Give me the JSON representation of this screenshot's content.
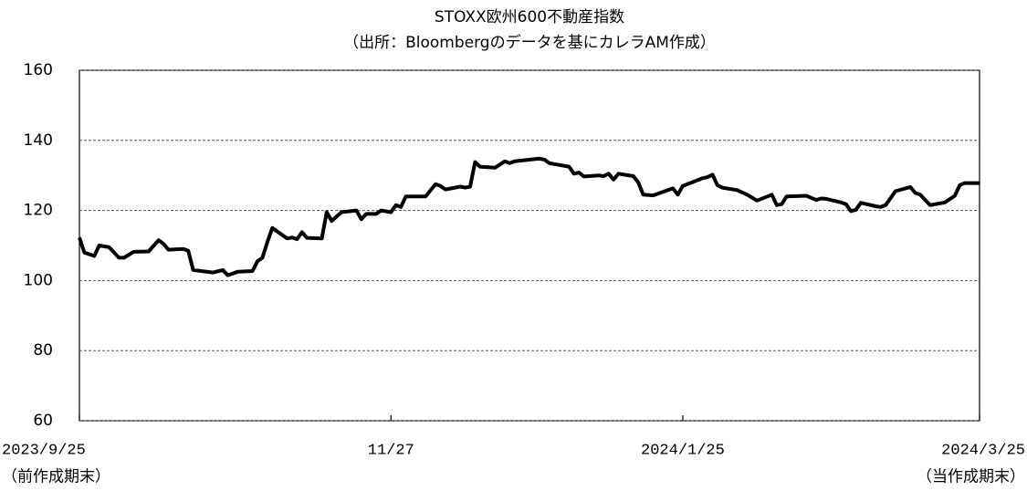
{
  "chart_data": {
    "type": "line",
    "title": "STOXX欧州600不動産指数",
    "subtitle": "（出所：Bloombergのデータを基にカレラAM作成）",
    "annotations": [
      "（前作成期末）",
      "（当作成期末）"
    ],
    "x": [
      "2023-09-25",
      "2023-09-26",
      "2023-09-28",
      "2023-09-29",
      "2023-10-01",
      "2023-10-03",
      "2023-10-04",
      "2023-10-06",
      "2023-10-09",
      "2023-10-11",
      "2023-10-12",
      "2023-10-13",
      "2023-10-16",
      "2023-10-17",
      "2023-10-18",
      "2023-10-22",
      "2023-10-24",
      "2023-10-25",
      "2023-10-27",
      "2023-10-30",
      "2023-10-31",
      "2023-11-01",
      "2023-11-02",
      "2023-11-03",
      "2023-11-06",
      "2023-11-07",
      "2023-11-08",
      "2023-11-09",
      "2023-11-10",
      "2023-11-13",
      "2023-11-14",
      "2023-11-15",
      "2023-11-17",
      "2023-11-20",
      "2023-11-21",
      "2023-11-22",
      "2023-11-24",
      "2023-11-25",
      "2023-11-27",
      "2023-11-28",
      "2023-11-29",
      "2023-11-30",
      "2023-12-04",
      "2023-12-06",
      "2023-12-07",
      "2023-12-08",
      "2023-12-11",
      "2023-12-12",
      "2023-12-13",
      "2023-12-14",
      "2023-12-15",
      "2023-12-18",
      "2023-12-20",
      "2023-12-21",
      "2023-12-22",
      "2023-12-27",
      "2023-12-28",
      "2023-12-29",
      "2024-01-02",
      "2024-01-03",
      "2024-01-04",
      "2024-01-05",
      "2024-01-08",
      "2024-01-09",
      "2024-01-10",
      "2024-01-11",
      "2024-01-12",
      "2024-01-15",
      "2024-01-16",
      "2024-01-17",
      "2024-01-19",
      "2024-01-23",
      "2024-01-24",
      "2024-01-25",
      "2024-01-29",
      "2024-01-30",
      "2024-01-31",
      "2024-02-01",
      "2024-02-02",
      "2024-02-05",
      "2024-02-07",
      "2024-02-09",
      "2024-02-12",
      "2024-02-13",
      "2024-02-14",
      "2024-02-15",
      "2024-02-19",
      "2024-02-21",
      "2024-02-22",
      "2024-02-23",
      "2024-02-26",
      "2024-02-27",
      "2024-02-28",
      "2024-02-29",
      "2024-03-01",
      "2024-03-04",
      "2024-03-05",
      "2024-03-06",
      "2024-03-08",
      "2024-03-11",
      "2024-03-12",
      "2024-03-13",
      "2024-03-15",
      "2024-03-18",
      "2024-03-20",
      "2024-03-21",
      "2024-03-22",
      "2024-03-25"
    ],
    "series": [
      {
        "name": "STOXX欧州600不動産指数",
        "color": "#000000",
        "values": [
          112.3,
          108,
          107,
          110,
          109.5,
          106.5,
          106.5,
          108.2,
          108.3,
          111.5,
          110.5,
          108.8,
          109,
          108.5,
          103,
          102.3,
          103,
          101.5,
          102.5,
          102.7,
          105.5,
          106.5,
          111,
          115,
          112,
          112.3,
          111.8,
          113.8,
          112.2,
          112,
          119.5,
          117,
          119.5,
          120,
          117.5,
          119,
          119,
          120,
          119.5,
          121.5,
          121,
          124,
          124,
          127.5,
          127,
          126,
          126.8,
          126.5,
          126.8,
          133.8,
          132.5,
          132.2,
          134,
          133.5,
          134,
          134.8,
          134.5,
          133.5,
          132.5,
          130.5,
          130.8,
          129.7,
          130,
          129.8,
          130.5,
          128.8,
          130.5,
          129.8,
          128,
          124.5,
          124.3,
          126.3,
          124.5,
          127,
          129.2,
          129.5,
          130.2,
          127.2,
          126.5,
          125.8,
          124.5,
          122.8,
          124.5,
          121.5,
          121.8,
          124,
          124.2,
          123,
          123.4,
          123.3,
          122.3,
          121.8,
          119.8,
          120.2,
          122.2,
          121.2,
          121,
          121.5,
          125.5,
          126.7,
          125,
          124.5,
          121.5,
          122.3,
          124.2,
          127.2,
          127.8,
          127.8
        ]
      }
    ],
    "xlim": [
      "2023-09-25",
      "2024-03-25"
    ],
    "xticks": [
      {
        "value": "2023-09-25",
        "label": "2023/9/25"
      },
      {
        "value": "2023-11-27",
        "label": "11/27"
      },
      {
        "value": "2024-01-25",
        "label": "2024/1/25"
      },
      {
        "value": "2024-03-25",
        "label": "2024/3/25"
      }
    ],
    "ylim": [
      60,
      160
    ],
    "yticks": [
      60,
      80,
      100,
      120,
      140,
      160
    ],
    "grid": true
  }
}
